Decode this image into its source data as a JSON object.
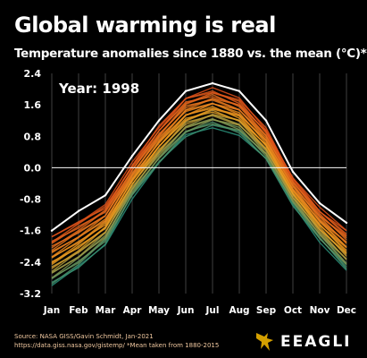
{
  "header": {
    "title": "Global warming is real",
    "subtitle": "Temperature anomalies since 1880 vs. the mean (°C)*"
  },
  "footer": {
    "source_line1": "Source: NASA GISS/Gavin Schmidt, Jan-2021",
    "source_line2": "https://data.giss.nasa.gov/gistemp/ *Mean taken from 1880-2015",
    "brand": "EEAGLI"
  },
  "colors": {
    "background": "#000000",
    "highlight_line": "#ffffff",
    "zero_line": "#ffffff",
    "grid": "#6a6a6a",
    "early_years": "#2a8f7a",
    "mid_years": "#f0a020",
    "late_years": "#e0501a",
    "brand_gold": "#d4a000"
  },
  "chart_data": {
    "type": "line",
    "title": "Global warming is real",
    "subtitle": "Temperature anomalies since 1880 vs. the mean (°C)*",
    "annotation": "Year: 1998",
    "categories": [
      "Jan",
      "Feb",
      "Mar",
      "Apr",
      "May",
      "Jun",
      "Jul",
      "Aug",
      "Sep",
      "Oct",
      "Nov",
      "Dec"
    ],
    "y_ticks": [
      "2.4",
      "1.6",
      "0.8",
      "0.0",
      "-0.8",
      "-1.6",
      "-2.4",
      "-3.2"
    ],
    "ylim": [
      -3.2,
      2.4
    ],
    "grid": "vertical",
    "series": [
      {
        "values": [
          -1.6,
          -1.1,
          -0.7,
          0.3,
          1.2,
          1.95,
          2.15,
          1.95,
          1.2,
          -0.1,
          -0.9,
          -1.4
        ]
      }
    ],
    "band": {
      "upper": [
        -1.75,
        -1.35,
        -0.95,
        0.1,
        1.05,
        1.8,
        2.0,
        1.75,
        1.0,
        -0.25,
        -1.05,
        -1.6
      ],
      "lower": [
        -3.0,
        -2.55,
        -1.95,
        -0.75,
        0.1,
        0.8,
        1.05,
        0.85,
        0.2,
        -0.95,
        -1.85,
        -2.6
      ]
    }
  }
}
